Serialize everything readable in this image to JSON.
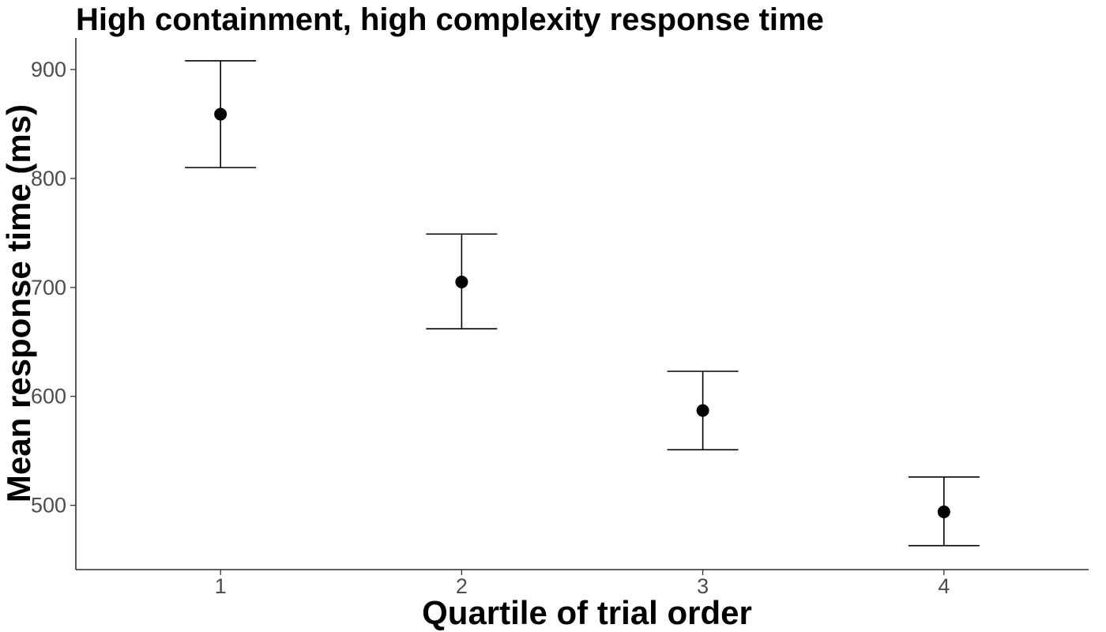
{
  "chart_data": {
    "type": "scatter",
    "title": "High containment, high complexity response time",
    "xlabel": "Quartile of trial order",
    "ylabel": "Mean response time (ms)",
    "categories": [
      "1",
      "2",
      "3",
      "4"
    ],
    "points": [
      {
        "x": "1",
        "y": 859,
        "ymin": 810,
        "ymax": 908
      },
      {
        "x": "2",
        "y": 705,
        "ymin": 662,
        "ymax": 749
      },
      {
        "x": "3",
        "y": 587,
        "ymin": 551,
        "ymax": 623
      },
      {
        "x": "4",
        "y": 494,
        "ymin": 463,
        "ymax": 526
      }
    ],
    "y_ticks": [
      500,
      600,
      700,
      800,
      900
    ],
    "ylim": [
      441,
      929
    ],
    "grid": false,
    "legend": "none",
    "colors": {
      "point": "#000000",
      "errorbar": "#000000",
      "tick_label": "#4d4d4d"
    }
  }
}
